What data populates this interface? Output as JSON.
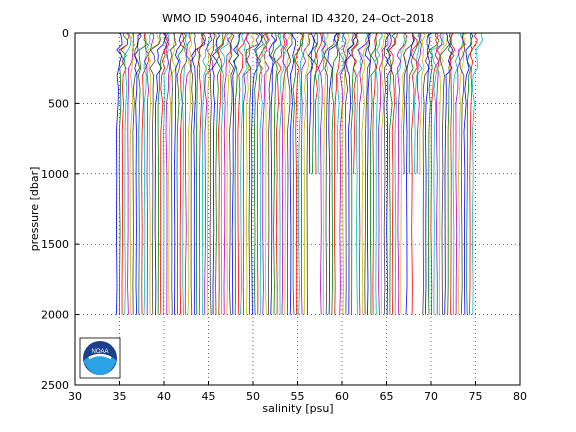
{
  "chart_data": {
    "type": "line",
    "title": "WMO ID 5904046, internal ID 4320, 24–Oct–2018",
    "xlabel": "salinity [psu]",
    "ylabel": "pressure [dbar]",
    "xlim": [
      30,
      80
    ],
    "ylim": [
      0,
      2500
    ],
    "y_reversed": true,
    "xticks": [
      "30",
      "35",
      "40",
      "45",
      "50",
      "55",
      "60",
      "65",
      "70",
      "75",
      "80"
    ],
    "yticks": [
      "0",
      "500",
      "1000",
      "1500",
      "2000",
      "2500"
    ],
    "grid": "dotted",
    "description_of_series": "waterfall of ~130 salinity profiles, each offset by about 0.31 psu, base salinity near 34.7 psu at depth and varying near the surface",
    "profiles": {
      "count": 130,
      "offset_step": 0.31,
      "deep_salinity": 34.7,
      "surface_salinity": 35.3,
      "max_pressure": 2000,
      "short_profile_max_pressure": 1000
    },
    "series_colors": [
      "#0000ff",
      "#008000",
      "#ff0000",
      "#00bfbf",
      "#bf00bf",
      "#bfbf00",
      "#404040"
    ],
    "logo": {
      "name": "noaa-logo",
      "text": "NOAA"
    }
  }
}
